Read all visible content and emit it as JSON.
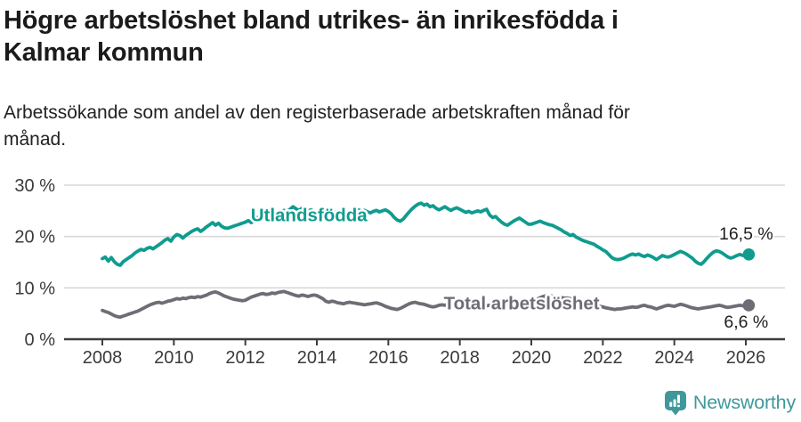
{
  "page": {
    "background": "#ffffff"
  },
  "header": {
    "title_lines": [
      "Högre arbetslöshet bland utrikes- än inrikesfödda i",
      "Kalmar kommun"
    ],
    "subtitle_lines": [
      "Arbetssökande som andel av den registerbaserade arbetskraften månad för",
      "månad."
    ]
  },
  "chart_data": {
    "type": "line",
    "title": "Högre arbetslöshet bland utrikes- än inrikesfödda i Kalmar kommun",
    "subtitle": "Arbetssökande som andel av den registerbaserade arbetskraften månad för månad.",
    "x_unit": "months",
    "x_start_year": 2008,
    "x_step_months": 1,
    "x_ticks": [
      2008,
      2010,
      2012,
      2014,
      2016,
      2018,
      2020,
      2022,
      2024,
      2026
    ],
    "y_ticks": [
      0,
      10,
      20,
      30
    ],
    "y_tick_suffix": " %",
    "ylim": [
      0,
      30
    ],
    "grid": "horizontal-light",
    "grid_color": "#d9d9d9",
    "axis_color": "#3d3d3d",
    "legend_position": "inline-labels",
    "series": [
      {
        "name": "Utlandsfödda",
        "color": "#0f9c8f",
        "end_label": "16,5 %",
        "end_value": 16.5,
        "label_pos": {
          "year": 2012.15,
          "value": 24.3
        },
        "values": [
          15.7,
          16.0,
          15.2,
          15.9,
          15.1,
          14.6,
          14.4,
          15.1,
          15.5,
          15.9,
          16.3,
          16.8,
          17.2,
          17.5,
          17.3,
          17.7,
          17.9,
          17.6,
          18.0,
          18.4,
          18.8,
          19.3,
          19.6,
          19.1,
          19.9,
          20.4,
          20.2,
          19.7,
          20.2,
          20.6,
          21.0,
          21.3,
          21.5,
          21.0,
          21.4,
          21.9,
          22.3,
          22.7,
          22.2,
          22.6,
          22.0,
          21.7,
          21.6,
          21.8,
          22.0,
          22.2,
          22.4,
          22.6,
          22.8,
          23.1,
          22.7,
          23.2,
          23.7,
          23.4,
          23.9,
          24.2,
          23.9,
          24.3,
          24.1,
          24.5,
          24.8,
          25.1,
          24.9,
          25.3,
          25.8,
          25.4,
          25.1,
          25.5,
          25.2,
          24.9,
          25.2,
          24.9,
          24.7,
          25.0,
          24.7,
          24.9,
          25.1,
          24.8,
          24.6,
          24.9,
          24.6,
          24.4,
          24.7,
          24.9,
          24.7,
          25.0,
          25.2,
          24.9,
          25.1,
          24.8,
          24.6,
          24.9,
          25.1,
          24.8,
          25.0,
          25.2,
          24.9,
          24.4,
          23.7,
          23.2,
          23.0,
          23.4,
          24.1,
          24.8,
          25.4,
          25.9,
          26.3,
          26.5,
          26.1,
          26.3,
          25.8,
          26.0,
          25.5,
          25.2,
          25.5,
          25.8,
          25.4,
          25.1,
          25.4,
          25.6,
          25.3,
          25.0,
          24.7,
          24.9,
          24.6,
          24.8,
          25.0,
          24.8,
          25.1,
          25.3,
          24.2,
          23.7,
          23.9,
          23.3,
          22.8,
          22.4,
          22.2,
          22.6,
          23.0,
          23.3,
          23.6,
          23.2,
          22.8,
          22.4,
          22.4,
          22.6,
          22.8,
          23.0,
          22.7,
          22.5,
          22.3,
          22.2,
          21.9,
          21.6,
          21.3,
          20.9,
          20.6,
          20.2,
          20.4,
          19.9,
          19.6,
          19.3,
          19.1,
          18.9,
          18.7,
          18.5,
          18.1,
          17.8,
          17.4,
          17.1,
          16.5,
          15.9,
          15.6,
          15.5,
          15.6,
          15.8,
          16.1,
          16.4,
          16.6,
          16.4,
          16.6,
          16.3,
          16.1,
          16.4,
          16.2,
          15.9,
          15.5,
          15.9,
          16.3,
          16.1,
          16.0,
          16.2,
          16.5,
          16.8,
          17.1,
          16.9,
          16.6,
          16.2,
          15.8,
          15.2,
          14.8,
          14.6,
          15.1,
          15.8,
          16.4,
          16.9,
          17.2,
          17.1,
          16.8,
          16.4,
          16.0,
          15.8,
          16.0,
          16.3,
          16.5,
          16.3,
          16.4,
          16.5
        ]
      },
      {
        "name": "Total arbetslöshet",
        "color": "#6d6d76",
        "end_label": "6,6 %",
        "end_value": 6.6,
        "label_pos": {
          "year": 2017.55,
          "value": 7.1
        },
        "values": [
          5.6,
          5.4,
          5.2,
          4.9,
          4.6,
          4.4,
          4.3,
          4.5,
          4.7,
          4.9,
          5.1,
          5.3,
          5.5,
          5.8,
          6.1,
          6.4,
          6.7,
          6.9,
          7.1,
          7.2,
          7.0,
          7.2,
          7.4,
          7.5,
          7.7,
          7.9,
          7.8,
          8.0,
          7.9,
          8.1,
          8.2,
          8.1,
          8.3,
          8.2,
          8.4,
          8.6,
          8.9,
          9.1,
          9.2,
          9.0,
          8.7,
          8.4,
          8.2,
          8.0,
          7.8,
          7.7,
          7.6,
          7.5,
          7.6,
          7.9,
          8.2,
          8.4,
          8.6,
          8.8,
          8.9,
          8.7,
          8.8,
          9.0,
          8.9,
          9.1,
          9.2,
          9.3,
          9.1,
          8.9,
          8.7,
          8.5,
          8.4,
          8.6,
          8.5,
          8.3,
          8.5,
          8.6,
          8.5,
          8.2,
          7.9,
          7.4,
          7.2,
          7.4,
          7.3,
          7.1,
          7.0,
          6.9,
          7.1,
          7.2,
          7.1,
          7.0,
          6.9,
          6.8,
          6.7,
          6.8,
          6.9,
          7.0,
          7.1,
          6.9,
          6.7,
          6.4,
          6.2,
          6.0,
          5.9,
          5.8,
          6.0,
          6.3,
          6.6,
          6.9,
          7.1,
          7.2,
          7.0,
          6.9,
          6.8,
          6.6,
          6.4,
          6.3,
          6.4,
          6.6,
          6.7,
          6.6,
          6.8,
          6.9,
          6.7,
          6.6,
          6.5,
          6.6,
          6.4,
          6.3,
          6.4,
          6.3,
          6.4,
          6.5,
          6.4,
          6.5,
          6.6,
          6.5,
          6.6,
          6.7,
          6.8,
          6.7,
          6.8,
          6.9,
          7.0,
          6.9,
          7.0,
          7.1,
          7.1,
          7.2,
          7.2,
          7.5,
          7.8,
          8.1,
          8.3,
          8.5,
          8.5,
          8.4,
          8.3,
          8.2,
          8.1,
          8.0,
          8.0,
          7.9,
          7.8,
          7.6,
          7.5,
          7.3,
          7.2,
          7.0,
          6.9,
          6.7,
          6.6,
          6.4,
          6.3,
          6.1,
          6.0,
          5.9,
          5.8,
          5.9,
          5.9,
          6.0,
          6.1,
          6.2,
          6.3,
          6.2,
          6.3,
          6.5,
          6.6,
          6.4,
          6.3,
          6.1,
          5.9,
          6.1,
          6.3,
          6.5,
          6.6,
          6.5,
          6.4,
          6.6,
          6.8,
          6.7,
          6.5,
          6.3,
          6.1,
          6.0,
          5.9,
          6.0,
          6.1,
          6.2,
          6.3,
          6.4,
          6.5,
          6.6,
          6.5,
          6.3,
          6.2,
          6.3,
          6.4,
          6.5,
          6.6,
          6.5,
          6.5,
          6.6
        ]
      }
    ]
  },
  "footer": {
    "brand": "Newsworthy",
    "brand_color": "#41989a",
    "icon": "newsworthy-chart-pin-icon"
  }
}
